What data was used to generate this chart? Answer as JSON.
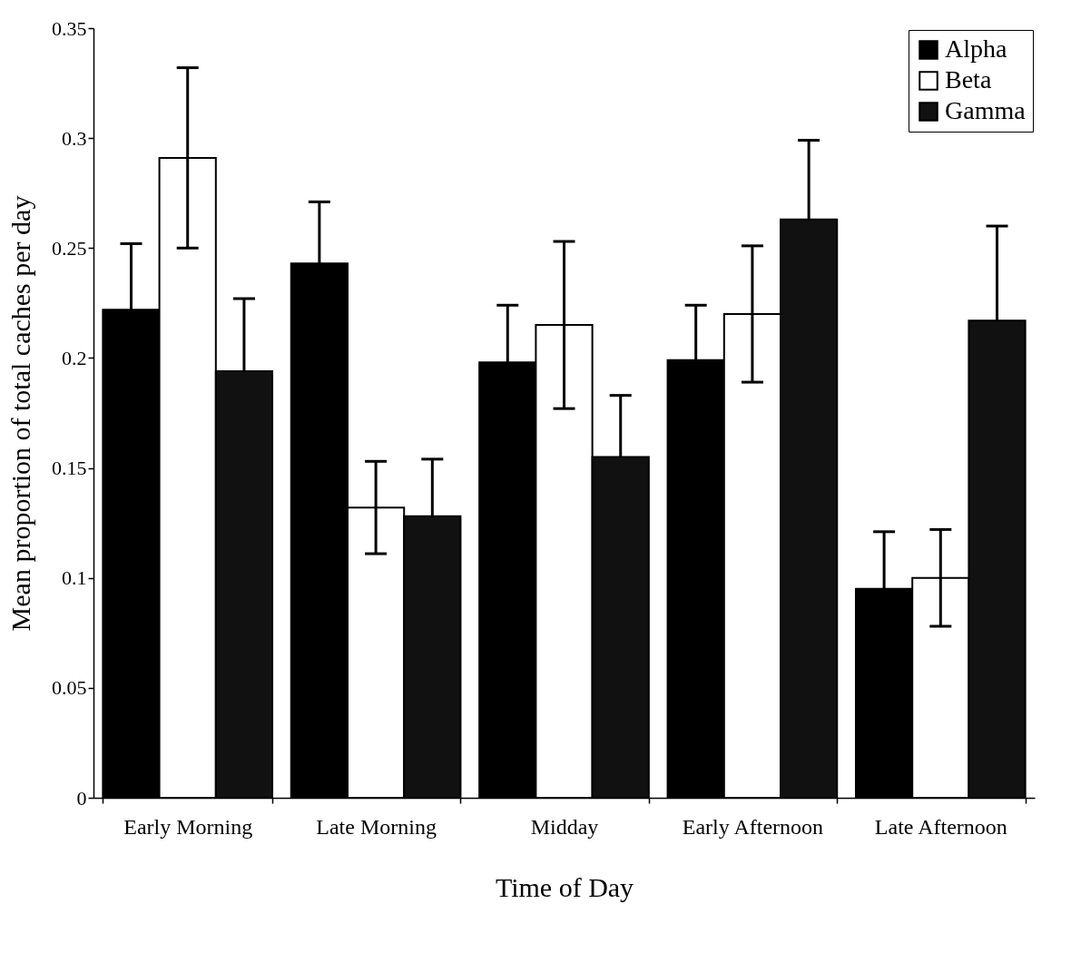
{
  "chart_data": {
    "type": "bar",
    "xlabel": "Time of Day",
    "ylabel": "Mean proportion of total caches per day",
    "categories": [
      "Early Morning",
      "Late Morning",
      "Midday",
      "Early Afternoon",
      "Late Afternoon"
    ],
    "series": [
      {
        "name": "Alpha",
        "color": "#000000",
        "values": [
          0.222,
          0.243,
          0.198,
          0.199,
          0.095
        ],
        "errors": [
          [
            0.222,
            0.252
          ],
          [
            0.243,
            0.271
          ],
          [
            0.198,
            0.224
          ],
          [
            0.199,
            0.224
          ],
          [
            0.095,
            0.121
          ]
        ]
      },
      {
        "name": "Beta",
        "color": "#ffffff",
        "values": [
          0.291,
          0.132,
          0.215,
          0.22,
          0.1
        ],
        "errors": [
          0.041,
          0.021,
          0.038,
          0.031,
          0.022
        ]
      },
      {
        "name": "Gamma",
        "color": "#111111",
        "values": [
          0.194,
          0.128,
          0.155,
          0.263,
          0.217
        ],
        "errors": [
          [
            0.194,
            0.227
          ],
          [
            0.128,
            0.154
          ],
          [
            0.155,
            0.183
          ],
          [
            0.263,
            0.299
          ],
          [
            0.217,
            0.26
          ]
        ]
      }
    ],
    "ylim": [
      0,
      0.35
    ],
    "yticks": [
      0,
      0.05,
      0.1,
      0.15,
      0.2,
      0.25,
      0.3,
      0.35
    ],
    "grid": false,
    "legend": "top right"
  }
}
